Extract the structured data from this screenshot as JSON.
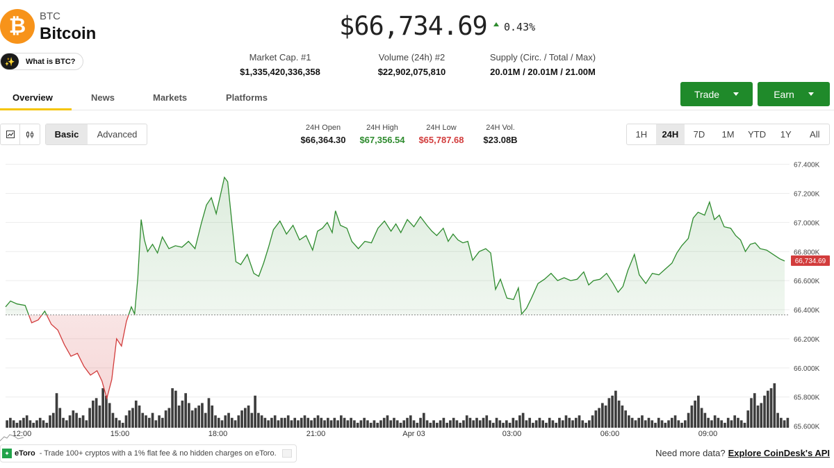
{
  "coin": {
    "symbol": "BTC",
    "name": "Bitcoin",
    "logo_glyph": "₿",
    "what_is_label": "What is BTC?",
    "price": "$66,734.69",
    "change": "0.43%",
    "change_direction": "up"
  },
  "stats": [
    {
      "label": "Market Cap. #1",
      "value": "$1,335,420,336,358"
    },
    {
      "label": "Volume (24h) #2",
      "value": "$22,902,075,810"
    },
    {
      "label": "Supply (Circ. / Total / Max)",
      "value": "20.01M / 20.01M / 21.00M"
    }
  ],
  "tabs": [
    "Overview",
    "News",
    "Markets",
    "Platforms"
  ],
  "actions": {
    "trade": "Trade",
    "earn": "Earn"
  },
  "toolbar": {
    "modes": [
      "Basic",
      "Advanced"
    ],
    "ohlc": [
      {
        "label": "24H Open",
        "value": "$66,364.30"
      },
      {
        "label": "24H High",
        "value": "$67,356.54"
      },
      {
        "label": "24H Low",
        "value": "$65,787.68"
      },
      {
        "label": "24H Vol.",
        "value": "$23.08B"
      }
    ],
    "ranges": [
      "1H",
      "24H",
      "7D",
      "1M",
      "YTD",
      "1Y",
      "All"
    ],
    "active_range": "24H"
  },
  "colors": {
    "up": "#2e8b2e",
    "down": "#d23c3c",
    "accent": "#1f8a2a",
    "tab_underline": "#f5c400"
  },
  "footer": {
    "sponsor_brand": "eToro",
    "sponsor_text": "- Trade 100+ cryptos with a 1% flat fee & no hidden charges on eToro.",
    "need_data": "Need more data?",
    "api_link": "Explore CoinDesk's API"
  },
  "chart_data": {
    "type": "area",
    "baseline": 66364.3,
    "current_price_label": "66,734.69",
    "y_ticks": [
      65600,
      65800,
      66000,
      66200,
      66400,
      66600,
      66800,
      67000,
      67200,
      67400
    ],
    "y_tick_labels": [
      "65.600K",
      "65.800K",
      "66.000K",
      "66.200K",
      "66.400K",
      "66.600K",
      "66.800K",
      "67.000K",
      "67.200K",
      "67.400K"
    ],
    "ylim": [
      65560,
      67460
    ],
    "x_ticks": [
      {
        "t": 0.5,
        "label": "12:00"
      },
      {
        "t": 3.5,
        "label": "15:00"
      },
      {
        "t": 6.5,
        "label": "18:00"
      },
      {
        "t": 9.5,
        "label": "21:00"
      },
      {
        "t": 12.5,
        "label": "Apr 03"
      },
      {
        "t": 15.5,
        "label": "03:00"
      },
      {
        "t": 18.5,
        "label": "06:00"
      },
      {
        "t": 21.5,
        "label": "09:00"
      }
    ],
    "xlim": [
      0,
      24
    ],
    "price": [
      [
        0,
        66420
      ],
      [
        0.15,
        66460
      ],
      [
        0.35,
        66440
      ],
      [
        0.6,
        66430
      ],
      [
        0.8,
        66310
      ],
      [
        1.0,
        66330
      ],
      [
        1.2,
        66390
      ],
      [
        1.4,
        66300
      ],
      [
        1.6,
        66260
      ],
      [
        1.8,
        66160
      ],
      [
        2.0,
        66080
      ],
      [
        2.2,
        66100
      ],
      [
        2.4,
        66010
      ],
      [
        2.6,
        65950
      ],
      [
        2.8,
        65980
      ],
      [
        2.95,
        65910
      ],
      [
        3.1,
        65790
      ],
      [
        3.25,
        65920
      ],
      [
        3.4,
        66200
      ],
      [
        3.55,
        66150
      ],
      [
        3.7,
        66320
      ],
      [
        3.85,
        66420
      ],
      [
        3.95,
        66370
      ],
      [
        4.05,
        66620
      ],
      [
        4.15,
        67020
      ],
      [
        4.25,
        66880
      ],
      [
        4.35,
        66800
      ],
      [
        4.5,
        66850
      ],
      [
        4.65,
        66790
      ],
      [
        4.8,
        66900
      ],
      [
        5.0,
        66820
      ],
      [
        5.2,
        66840
      ],
      [
        5.4,
        66830
      ],
      [
        5.6,
        66870
      ],
      [
        5.8,
        66820
      ],
      [
        6.0,
        67000
      ],
      [
        6.15,
        67120
      ],
      [
        6.3,
        67170
      ],
      [
        6.45,
        67060
      ],
      [
        6.6,
        67210
      ],
      [
        6.7,
        67310
      ],
      [
        6.8,
        67280
      ],
      [
        6.95,
        66950
      ],
      [
        7.05,
        66730
      ],
      [
        7.2,
        66710
      ],
      [
        7.4,
        66780
      ],
      [
        7.6,
        66650
      ],
      [
        7.75,
        66630
      ],
      [
        7.9,
        66720
      ],
      [
        8.05,
        66830
      ],
      [
        8.2,
        66950
      ],
      [
        8.4,
        67010
      ],
      [
        8.6,
        66920
      ],
      [
        8.8,
        66980
      ],
      [
        9.0,
        66880
      ],
      [
        9.2,
        66910
      ],
      [
        9.4,
        66810
      ],
      [
        9.55,
        66940
      ],
      [
        9.7,
        66960
      ],
      [
        9.85,
        67000
      ],
      [
        10.0,
        66930
      ],
      [
        10.1,
        67080
      ],
      [
        10.25,
        66980
      ],
      [
        10.45,
        66960
      ],
      [
        10.6,
        66870
      ],
      [
        10.8,
        66820
      ],
      [
        11.0,
        66870
      ],
      [
        11.2,
        66860
      ],
      [
        11.4,
        66960
      ],
      [
        11.6,
        67010
      ],
      [
        11.8,
        66940
      ],
      [
        11.95,
        66990
      ],
      [
        12.1,
        66930
      ],
      [
        12.3,
        67020
      ],
      [
        12.5,
        66970
      ],
      [
        12.7,
        67040
      ],
      [
        12.9,
        66980
      ],
      [
        13.05,
        66940
      ],
      [
        13.2,
        66910
      ],
      [
        13.4,
        66960
      ],
      [
        13.55,
        66870
      ],
      [
        13.7,
        66920
      ],
      [
        13.85,
        66880
      ],
      [
        14.0,
        66860
      ],
      [
        14.15,
        66870
      ],
      [
        14.3,
        66740
      ],
      [
        14.5,
        66800
      ],
      [
        14.7,
        66820
      ],
      [
        14.85,
        66790
      ],
      [
        15.0,
        66540
      ],
      [
        15.15,
        66610
      ],
      [
        15.35,
        66480
      ],
      [
        15.55,
        66470
      ],
      [
        15.7,
        66550
      ],
      [
        15.8,
        66370
      ],
      [
        15.95,
        66410
      ],
      [
        16.1,
        66480
      ],
      [
        16.3,
        66580
      ],
      [
        16.5,
        66610
      ],
      [
        16.7,
        66650
      ],
      [
        16.9,
        66600
      ],
      [
        17.1,
        66620
      ],
      [
        17.3,
        66600
      ],
      [
        17.5,
        66610
      ],
      [
        17.7,
        66660
      ],
      [
        17.85,
        66570
      ],
      [
        18.0,
        66600
      ],
      [
        18.2,
        66610
      ],
      [
        18.4,
        66650
      ],
      [
        18.6,
        66580
      ],
      [
        18.75,
        66520
      ],
      [
        18.9,
        66560
      ],
      [
        19.05,
        66670
      ],
      [
        19.25,
        66780
      ],
      [
        19.4,
        66640
      ],
      [
        19.6,
        66580
      ],
      [
        19.8,
        66650
      ],
      [
        20.0,
        66640
      ],
      [
        20.2,
        66680
      ],
      [
        20.4,
        66720
      ],
      [
        20.55,
        66790
      ],
      [
        20.7,
        66840
      ],
      [
        20.9,
        66890
      ],
      [
        21.05,
        67030
      ],
      [
        21.2,
        67070
      ],
      [
        21.4,
        67050
      ],
      [
        21.55,
        67140
      ],
      [
        21.7,
        67020
      ],
      [
        21.85,
        67050
      ],
      [
        22.0,
        66970
      ],
      [
        22.2,
        66960
      ],
      [
        22.35,
        66910
      ],
      [
        22.5,
        66880
      ],
      [
        22.65,
        66800
      ],
      [
        22.8,
        66850
      ],
      [
        22.95,
        66860
      ],
      [
        23.1,
        66820
      ],
      [
        23.3,
        66810
      ],
      [
        23.5,
        66780
      ],
      [
        23.7,
        66750
      ],
      [
        23.85,
        66734.69
      ]
    ],
    "volume": [
      3,
      4,
      3,
      2,
      3,
      4,
      5,
      3,
      2,
      3,
      4,
      3,
      2,
      5,
      6,
      14,
      8,
      4,
      3,
      5,
      7,
      6,
      4,
      5,
      3,
      8,
      11,
      12,
      9,
      16,
      13,
      10,
      6,
      4,
      3,
      2,
      5,
      7,
      8,
      11,
      9,
      6,
      5,
      4,
      6,
      3,
      5,
      4,
      7,
      8,
      16,
      15,
      9,
      11,
      14,
      10,
      7,
      8,
      9,
      10,
      6,
      12,
      9,
      5,
      4,
      3,
      5,
      6,
      4,
      3,
      5,
      7,
      8,
      9,
      6,
      13,
      6,
      5,
      4,
      3,
      4,
      5,
      3,
      4,
      4,
      5,
      3,
      4,
      3,
      4,
      5,
      4,
      3,
      4,
      5,
      4,
      3,
      4,
      3,
      4,
      3,
      5,
      4,
      3,
      4,
      3,
      2,
      3,
      4,
      3,
      2,
      3,
      2,
      3,
      4,
      5,
      3,
      4,
      3,
      2,
      3,
      4,
      5,
      3,
      2,
      4,
      6,
      3,
      2,
      3,
      2,
      3,
      4,
      2,
      3,
      4,
      3,
      2,
      3,
      5,
      4,
      3,
      4,
      3,
      4,
      5,
      3,
      2,
      4,
      3,
      2,
      3,
      2,
      4,
      3,
      5,
      6,
      3,
      4,
      2,
      3,
      4,
      3,
      2,
      4,
      3,
      2,
      4,
      3,
      5,
      4,
      3,
      4,
      5,
      3,
      2,
      3,
      5,
      7,
      8,
      10,
      9,
      12,
      13,
      15,
      11,
      9,
      7,
      5,
      4,
      3,
      4,
      5,
      3,
      4,
      3,
      2,
      4,
      3,
      2,
      3,
      4,
      5,
      3,
      2,
      3,
      6,
      9,
      11,
      13,
      8,
      6,
      4,
      3,
      5,
      4,
      3,
      2,
      4,
      3,
      5,
      4,
      3,
      2,
      7,
      12,
      14,
      9,
      10,
      13,
      15,
      16,
      18,
      6,
      4,
      3,
      4
    ],
    "volume_max": 18
  }
}
